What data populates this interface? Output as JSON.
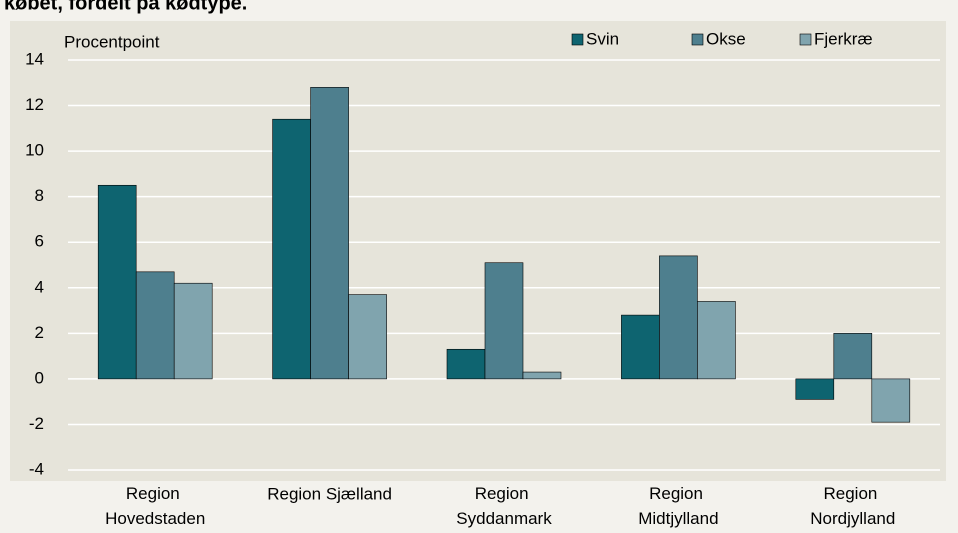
{
  "chart_data": {
    "type": "bar",
    "title": "købet, fordelt på kødtype.",
    "y_label": "Procentpoint",
    "categories": [
      "Region Hovedstaden",
      "Region Sjælland",
      "Region Syddanmark",
      "Region Midtjylland",
      "Region Nordjylland"
    ],
    "series": [
      {
        "name": "Svin",
        "color": "#0e6470",
        "values": [
          8.5,
          11.4,
          1.3,
          2.8,
          -0.9
        ]
      },
      {
        "name": "Okse",
        "color": "#4e7f8e",
        "values": [
          4.7,
          12.8,
          5.1,
          5.4,
          2.0
        ]
      },
      {
        "name": "Fjerkræ",
        "color": "#80a4ae",
        "values": [
          4.2,
          3.7,
          0.3,
          3.4,
          -1.9
        ]
      }
    ],
    "ylim": [
      -4,
      14
    ],
    "yticks": [
      -4,
      -2,
      0,
      2,
      4,
      6,
      8,
      10,
      12,
      14
    ],
    "grid": true,
    "legend": "top-right"
  }
}
